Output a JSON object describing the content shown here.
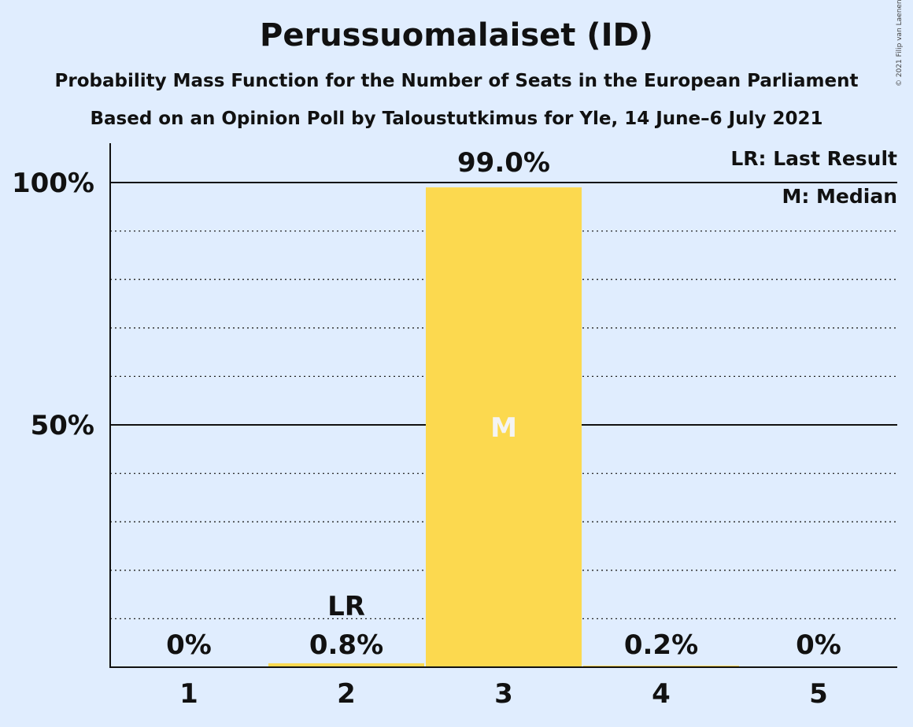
{
  "title": "Perussuomalaiset (ID)",
  "subtitle_1": "Probability Mass Function for the Number of Seats in the European Parliament",
  "subtitle_2": "Based on an Opinion Poll by Taloustutkimus for Yle, 14 June–6 July 2021",
  "copyright": "© 2021 Filip van Laenen",
  "legend": {
    "last_result": "LR: Last Result",
    "median": "M: Median"
  },
  "colors": {
    "background": "#e0edfe",
    "bar": "#fcd94f",
    "median_text": "#f4f4f4"
  },
  "chart_data": {
    "type": "bar",
    "categories": [
      "1",
      "2",
      "3",
      "4",
      "5"
    ],
    "values": [
      0,
      0.8,
      99.0,
      0.2,
      0
    ],
    "labels": [
      "0%",
      "0.8%",
      "99.0%",
      "0.2%",
      "0%"
    ],
    "ylim": [
      0,
      100
    ],
    "y_ticks": [
      50,
      100
    ],
    "y_tick_labels": [
      "50%",
      "100%"
    ],
    "minor_gridlines_every": 10,
    "last_result_category": "2",
    "last_result_marker": "LR",
    "median_category": "3",
    "median_marker": "M",
    "legend_placement": "top-right"
  }
}
